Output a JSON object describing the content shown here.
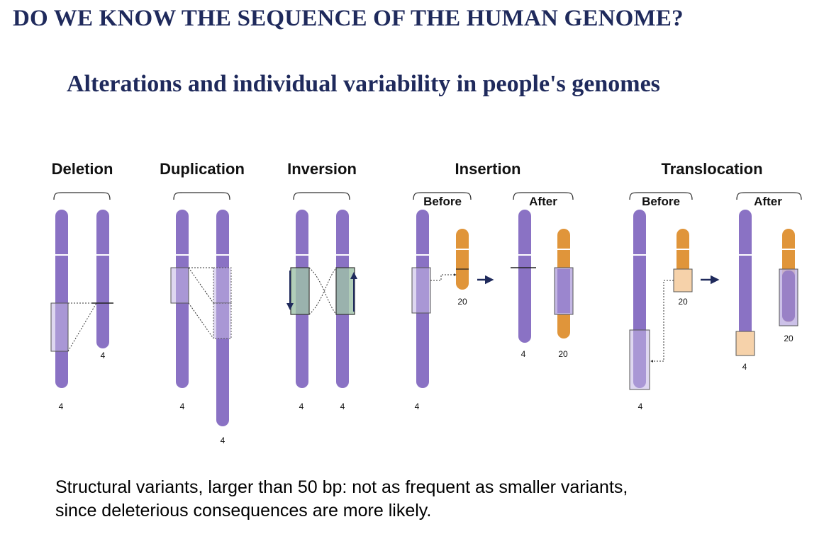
{
  "title": "DO WE KNOW THE SEQUENCE OF THE HUMAN GENOME?",
  "subtitle": "Alterations and individual variability in people's genomes",
  "diagram": {
    "headers": {
      "deletion": "Deletion",
      "duplication": "Duplication",
      "inversion": "Inversion",
      "insertion": "Insertion",
      "translocation": "Translocation"
    },
    "before_label": "Before",
    "after_label": "After",
    "chromosome_numbers": {
      "deletion_a": "4",
      "deletion_b": "4",
      "duplication_a": "4",
      "duplication_b": "4",
      "inversion_a": "4",
      "inversion_b": "4",
      "insertion_before_a": "4",
      "insertion_before_b": "20",
      "insertion_after_a": "4",
      "insertion_after_b": "20",
      "translocation_before_a": "4",
      "translocation_before_b": "20",
      "translocation_after_a": "4",
      "translocation_after_b": "20"
    },
    "colors": {
      "chromosome_4": "#8a72c4",
      "chromosome_20": "#e0953a",
      "highlight_purple": "#c3b6e4",
      "highlight_green": "#9ec2a8",
      "highlight_peach": "#f6d2aa",
      "arrow": "#1f2a5c"
    }
  },
  "caption": {
    "line1": "Structural variants, larger than 50 bp: not as frequent as smaller variants,",
    "line2": "since deleterious consequences are more likely."
  }
}
